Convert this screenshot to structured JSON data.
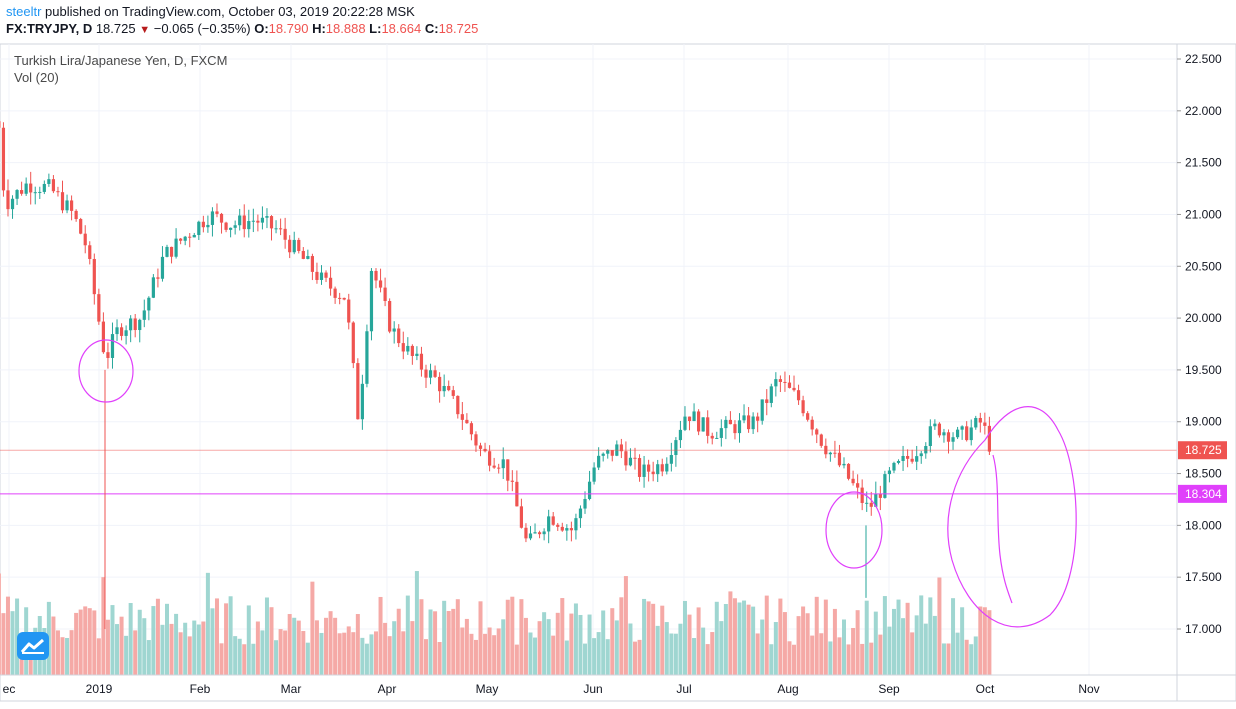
{
  "header": {
    "username": "steeltr",
    "published_text": " published on TradingView.com, October 03, 2019 20:22:28 MSK",
    "symbol": "FX:TRYJPY, D",
    "last": "18.725",
    "change_arrow": "▼",
    "change": "−0.065 (−0.35%)",
    "o_label": "O:",
    "o_value": "18.790",
    "h_label": "H:",
    "h_value": "18.888",
    "l_label": "L:",
    "l_value": "18.664",
    "c_label": "C:",
    "c_value": "18.725"
  },
  "legend": {
    "title": "Turkish Lira/Japanese Yen, D, FXCM",
    "volume": "Vol (20)"
  },
  "colors": {
    "up": "#26a69a",
    "down": "#ef5350",
    "vol_up": "#9fd6d1",
    "vol_down": "#f5a9a6",
    "last_price": "#ef5350",
    "hline": "#e040fb",
    "drawing": "#e040fb"
  },
  "chart_data": {
    "type": "candlestick",
    "ylim": [
      16.6,
      22.6
    ],
    "y_ticks": [
      "22.500",
      "22.000",
      "21.500",
      "21.000",
      "20.500",
      "20.000",
      "19.500",
      "19.000",
      "18.500",
      "18.000",
      "17.500",
      "17.000"
    ],
    "x_ticks": [
      "ec",
      "2019",
      "Feb",
      "Mar",
      "Apr",
      "May",
      "Jun",
      "Jul",
      "Aug",
      "Sep",
      "Oct",
      "Nov"
    ],
    "last_price_label": "18.725",
    "horizontal_line_label": "18.304",
    "price_path": [
      [
        "2018-12-01",
        21.9
      ],
      [
        "2018-12-03",
        21.1
      ],
      [
        "2018-12-10",
        21.3
      ],
      [
        "2018-12-17",
        21.25
      ],
      [
        "2018-12-24",
        21.0
      ],
      [
        "2018-12-28",
        20.7
      ],
      [
        "2019-01-03",
        19.6
      ],
      [
        "2019-01-07",
        19.9
      ],
      [
        "2019-01-14",
        20.0
      ],
      [
        "2019-01-21",
        20.6
      ],
      [
        "2019-01-28",
        20.8
      ],
      [
        "2019-02-04",
        21.0
      ],
      [
        "2019-02-11",
        20.9
      ],
      [
        "2019-02-18",
        20.95
      ],
      [
        "2019-02-25",
        20.85
      ],
      [
        "2019-03-04",
        20.6
      ],
      [
        "2019-03-11",
        20.35
      ],
      [
        "2019-03-18",
        20.2
      ],
      [
        "2019-03-22",
        19.0
      ],
      [
        "2019-03-26",
        20.5
      ],
      [
        "2019-04-01",
        19.9
      ],
      [
        "2019-04-08",
        19.6
      ],
      [
        "2019-04-15",
        19.4
      ],
      [
        "2019-04-22",
        19.1
      ],
      [
        "2019-04-29",
        18.7
      ],
      [
        "2019-05-06",
        18.6
      ],
      [
        "2019-05-13",
        17.8
      ],
      [
        "2019-05-20",
        18.1
      ],
      [
        "2019-05-27",
        17.95
      ],
      [
        "2019-06-03",
        18.6
      ],
      [
        "2019-06-10",
        18.75
      ],
      [
        "2019-06-17",
        18.5
      ],
      [
        "2019-06-24",
        18.6
      ],
      [
        "2019-07-01",
        19.1
      ],
      [
        "2019-07-08",
        18.9
      ],
      [
        "2019-07-15",
        18.95
      ],
      [
        "2019-07-22",
        19.0
      ],
      [
        "2019-07-29",
        19.4
      ],
      [
        "2019-08-05",
        19.2
      ],
      [
        "2019-08-12",
        18.8
      ],
      [
        "2019-08-19",
        18.5
      ],
      [
        "2019-08-26",
        18.15
      ],
      [
        "2019-09-02",
        18.5
      ],
      [
        "2019-09-09",
        18.7
      ],
      [
        "2019-09-16",
        18.95
      ],
      [
        "2019-09-23",
        18.85
      ],
      [
        "2019-09-30",
        19.0
      ],
      [
        "2019-10-03",
        18.725
      ]
    ]
  }
}
